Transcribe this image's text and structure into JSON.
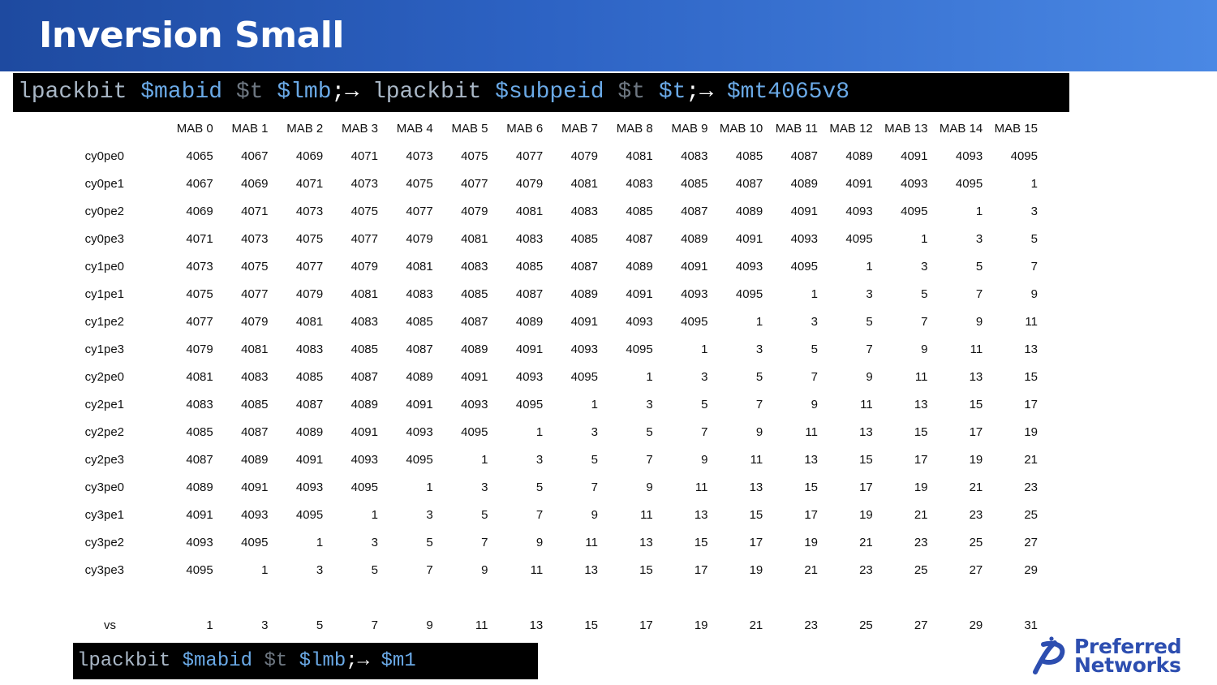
{
  "header": {
    "title": "Inversion Small"
  },
  "code_top": [
    {
      "text": "lpackbit",
      "kind": "cmd"
    },
    {
      "text": " ",
      "kind": "space"
    },
    {
      "text": "$mabid",
      "kind": "arg"
    },
    {
      "text": " ",
      "kind": "space"
    },
    {
      "text": "$t",
      "kind": "t"
    },
    {
      "text": " ",
      "kind": "space"
    },
    {
      "text": "$lmb",
      "kind": "arg"
    },
    {
      "text": ";→",
      "kind": "arrow"
    },
    {
      "text": " ",
      "kind": "space"
    },
    {
      "text": "lpackbit",
      "kind": "cmd"
    },
    {
      "text": " ",
      "kind": "space"
    },
    {
      "text": "$subpeid",
      "kind": "arg"
    },
    {
      "text": " ",
      "kind": "space"
    },
    {
      "text": "$t",
      "kind": "t"
    },
    {
      "text": " ",
      "kind": "space"
    },
    {
      "text": "$t",
      "kind": "arg"
    },
    {
      "text": ";→",
      "kind": "arrow"
    },
    {
      "text": " ",
      "kind": "space"
    },
    {
      "text": "$mt4065v8",
      "kind": "arg"
    }
  ],
  "code_bottom": [
    {
      "text": "lpackbit",
      "kind": "cmd"
    },
    {
      "text": " ",
      "kind": "space"
    },
    {
      "text": "$mabid",
      "kind": "arg"
    },
    {
      "text": " ",
      "kind": "space"
    },
    {
      "text": "$t",
      "kind": "t"
    },
    {
      "text": " ",
      "kind": "space"
    },
    {
      "text": "$lmb",
      "kind": "arg"
    },
    {
      "text": ";→",
      "kind": "arrow"
    },
    {
      "text": " ",
      "kind": "space"
    },
    {
      "text": "$m1",
      "kind": "arg"
    }
  ],
  "table": {
    "columns": [
      "MAB 0",
      "MAB 1",
      "MAB 2",
      "MAB 3",
      "MAB 4",
      "MAB 5",
      "MAB 6",
      "MAB 7",
      "MAB 8",
      "MAB 9",
      "MAB 10",
      "MAB 11",
      "MAB 12",
      "MAB 13",
      "MAB 14",
      "MAB 15"
    ],
    "rows": [
      {
        "cy": "cy0",
        "pe": "pe0",
        "values": [
          "4065",
          "4067",
          "4069",
          "4071",
          "4073",
          "4075",
          "4077",
          "4079",
          "4081",
          "4083",
          "4085",
          "4087",
          "4089",
          "4091",
          "4093",
          "4095"
        ]
      },
      {
        "cy": "cy0",
        "pe": "pe1",
        "values": [
          "4067",
          "4069",
          "4071",
          "4073",
          "4075",
          "4077",
          "4079",
          "4081",
          "4083",
          "4085",
          "4087",
          "4089",
          "4091",
          "4093",
          "4095",
          "1"
        ]
      },
      {
        "cy": "cy0",
        "pe": "pe2",
        "values": [
          "4069",
          "4071",
          "4073",
          "4075",
          "4077",
          "4079",
          "4081",
          "4083",
          "4085",
          "4087",
          "4089",
          "4091",
          "4093",
          "4095",
          "1",
          "3"
        ]
      },
      {
        "cy": "cy0",
        "pe": "pe3",
        "values": [
          "4071",
          "4073",
          "4075",
          "4077",
          "4079",
          "4081",
          "4083",
          "4085",
          "4087",
          "4089",
          "4091",
          "4093",
          "4095",
          "1",
          "3",
          "5"
        ]
      },
      {
        "cy": "cy1",
        "pe": "pe0",
        "values": [
          "4073",
          "4075",
          "4077",
          "4079",
          "4081",
          "4083",
          "4085",
          "4087",
          "4089",
          "4091",
          "4093",
          "4095",
          "1",
          "3",
          "5",
          "7"
        ]
      },
      {
        "cy": "cy1",
        "pe": "pe1",
        "values": [
          "4075",
          "4077",
          "4079",
          "4081",
          "4083",
          "4085",
          "4087",
          "4089",
          "4091",
          "4093",
          "4095",
          "1",
          "3",
          "5",
          "7",
          "9"
        ]
      },
      {
        "cy": "cy1",
        "pe": "pe2",
        "values": [
          "4077",
          "4079",
          "4081",
          "4083",
          "4085",
          "4087",
          "4089",
          "4091",
          "4093",
          "4095",
          "1",
          "3",
          "5",
          "7",
          "9",
          "11"
        ]
      },
      {
        "cy": "cy1",
        "pe": "pe3",
        "values": [
          "4079",
          "4081",
          "4083",
          "4085",
          "4087",
          "4089",
          "4091",
          "4093",
          "4095",
          "1",
          "3",
          "5",
          "7",
          "9",
          "11",
          "13"
        ]
      },
      {
        "cy": "cy2",
        "pe": "pe0",
        "values": [
          "4081",
          "4083",
          "4085",
          "4087",
          "4089",
          "4091",
          "4093",
          "4095",
          "1",
          "3",
          "5",
          "7",
          "9",
          "11",
          "13",
          "15"
        ]
      },
      {
        "cy": "cy2",
        "pe": "pe1",
        "values": [
          "4083",
          "4085",
          "4087",
          "4089",
          "4091",
          "4093",
          "4095",
          "1",
          "3",
          "5",
          "7",
          "9",
          "11",
          "13",
          "15",
          "17"
        ]
      },
      {
        "cy": "cy2",
        "pe": "pe2",
        "values": [
          "4085",
          "4087",
          "4089",
          "4091",
          "4093",
          "4095",
          "1",
          "3",
          "5",
          "7",
          "9",
          "11",
          "13",
          "15",
          "17",
          "19"
        ]
      },
      {
        "cy": "cy2",
        "pe": "pe3",
        "values": [
          "4087",
          "4089",
          "4091",
          "4093",
          "4095",
          "1",
          "3",
          "5",
          "7",
          "9",
          "11",
          "13",
          "15",
          "17",
          "19",
          "21"
        ]
      },
      {
        "cy": "cy3",
        "pe": "pe0",
        "values": [
          "4089",
          "4091",
          "4093",
          "4095",
          "1",
          "3",
          "5",
          "7",
          "9",
          "11",
          "13",
          "15",
          "17",
          "19",
          "21",
          "23"
        ]
      },
      {
        "cy": "cy3",
        "pe": "pe1",
        "values": [
          "4091",
          "4093",
          "4095",
          "1",
          "3",
          "5",
          "7",
          "9",
          "11",
          "13",
          "15",
          "17",
          "19",
          "21",
          "23",
          "25"
        ]
      },
      {
        "cy": "cy3",
        "pe": "pe2",
        "values": [
          "4093",
          "4095",
          "1",
          "3",
          "5",
          "7",
          "9",
          "11",
          "13",
          "15",
          "17",
          "19",
          "21",
          "23",
          "25",
          "27"
        ]
      },
      {
        "cy": "cy3",
        "pe": "pe3",
        "values": [
          "4095",
          "1",
          "3",
          "5",
          "7",
          "9",
          "11",
          "13",
          "15",
          "17",
          "19",
          "21",
          "23",
          "25",
          "27",
          "29"
        ]
      }
    ],
    "vs_row": {
      "label": "vs",
      "values": [
        "1",
        "3",
        "5",
        "7",
        "9",
        "11",
        "13",
        "15",
        "17",
        "19",
        "21",
        "23",
        "25",
        "27",
        "29",
        "31"
      ]
    }
  },
  "logo": {
    "line1": "Preferred",
    "line2": "Networks",
    "icon": "pfn-logo-icon",
    "color": "#2d4eb0"
  }
}
